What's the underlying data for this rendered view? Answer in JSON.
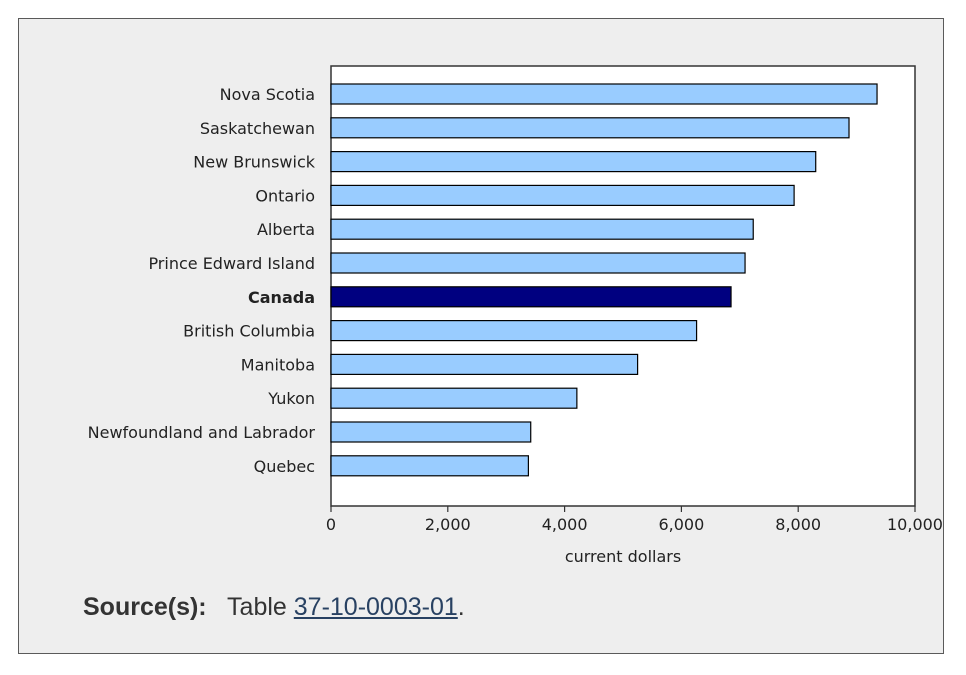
{
  "chart_data": {
    "type": "bar",
    "orientation": "horizontal",
    "categories": [
      "Nova Scotia",
      "Saskatchewan",
      "New Brunswick",
      "Ontario",
      "Alberta",
      "Prince Edward Island",
      "Canada",
      "British Columbia",
      "Manitoba",
      "Yukon",
      "Newfoundland and Labrador",
      "Quebec"
    ],
    "values": [
      9350,
      8870,
      8300,
      7930,
      7230,
      7090,
      6850,
      6260,
      5250,
      4210,
      3420,
      3380
    ],
    "highlight_category": "Canada",
    "xlabel": "current dollars",
    "xlim": [
      0,
      10000
    ],
    "xticks": [
      0,
      2000,
      4000,
      6000,
      8000,
      10000
    ],
    "xtick_labels": [
      "0",
      "2,000",
      "4,000",
      "6,000",
      "8,000",
      "10,000"
    ],
    "colors": {
      "bar": "#99ccff",
      "highlight": "#000080",
      "bar_stroke": "#000000"
    },
    "grid": false,
    "legend": "none"
  },
  "source": {
    "label": "Source(s):",
    "prefix": "Table",
    "link_text": "37-10-0003-01",
    "suffix": "."
  }
}
